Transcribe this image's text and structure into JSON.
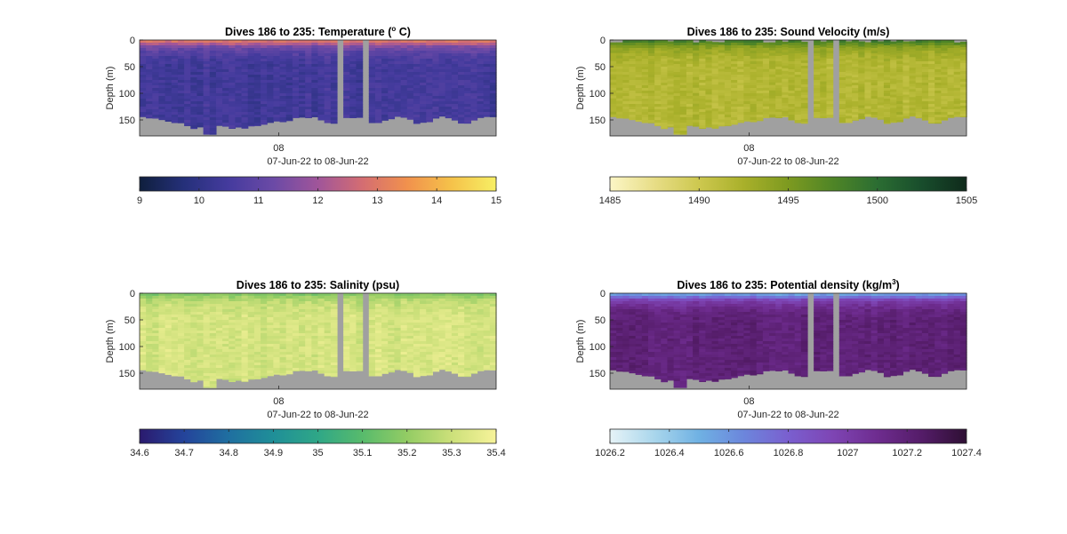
{
  "chart_data": [
    {
      "type": "heatmap",
      "title_main": "Dives 186 to 235: Temperature (",
      "title_sup": "o",
      "title_tail": " C)",
      "ylabel": "Depth (m)",
      "xlabel": "07-Jun-22 to 08-Jun-22",
      "x_tick": "08",
      "y_ticks": [
        "0",
        "50",
        "100",
        "150"
      ],
      "ylim": [
        0,
        180
      ],
      "y_reversed": true,
      "colorbar": {
        "min": 9,
        "max": 15,
        "ticks": [
          "9",
          "10",
          "11",
          "12",
          "13",
          "14",
          "15"
        ]
      },
      "profile": {
        "surface": 12.6,
        "thermocline_depth": 45,
        "deep": 10.3
      },
      "colors": [
        "#0f1f3d",
        "#25307a",
        "#453b9e",
        "#6b4aa6",
        "#a0559a",
        "#d46d72",
        "#f1914d",
        "#f5c24a",
        "#f7ef64"
      ]
    },
    {
      "type": "heatmap",
      "title_main": "Dives 186 to 235: Sound Velocity (m/s)",
      "title_sup": "",
      "title_tail": "",
      "ylabel": "Depth (m)",
      "xlabel": "07-Jun-22 to 08-Jun-22",
      "x_tick": "08",
      "y_ticks": [
        "0",
        "50",
        "100",
        "150"
      ],
      "ylim": [
        0,
        180
      ],
      "y_reversed": true,
      "colorbar": {
        "min": 1485,
        "max": 1505,
        "ticks": [
          "1485",
          "1490",
          "1495",
          "1500",
          "1505"
        ]
      },
      "profile": {
        "surface": 1497.5,
        "thermocline_depth": 45,
        "deep": 1491.5
      },
      "colors": [
        "#fcf6c6",
        "#e7dd86",
        "#cdc84f",
        "#a9b02a",
        "#7d9a20",
        "#4f8526",
        "#2b6d32",
        "#184d2c",
        "#0f2a1b"
      ]
    },
    {
      "type": "heatmap",
      "title_main": "Dives 186 to 235: Salinity (psu)",
      "title_sup": "",
      "title_tail": "",
      "ylabel": "Depth (m)",
      "xlabel": "07-Jun-22 to 08-Jun-22",
      "x_tick": "08",
      "y_ticks": [
        "0",
        "50",
        "100",
        "150"
      ],
      "ylim": [
        0,
        180
      ],
      "y_reversed": true,
      "colorbar": {
        "min": 34.6,
        "max": 35.4,
        "ticks": [
          "34.6",
          "34.7",
          "34.8",
          "34.9",
          "35",
          "35.1",
          "35.2",
          "35.3",
          "35.4"
        ]
      },
      "profile": {
        "surface": 35.2,
        "thermocline_depth": 45,
        "deep": 35.33
      },
      "colors": [
        "#2b1a6e",
        "#24449b",
        "#1f6fa0",
        "#1f8f98",
        "#2fa787",
        "#58bb6c",
        "#93cc64",
        "#cce07a",
        "#f7f39a"
      ]
    },
    {
      "type": "heatmap",
      "title_main": "Dives 186 to 235: Potential density (kg/m",
      "title_sup": "3",
      "title_tail": ")",
      "ylabel": "Depth (m)",
      "xlabel": "07-Jun-22 to 08-Jun-22",
      "x_tick": "08",
      "y_ticks": [
        "0",
        "50",
        "100",
        "150"
      ],
      "ylim": [
        0,
        180
      ],
      "y_reversed": true,
      "colorbar": {
        "min": 1026.2,
        "max": 1027.4,
        "ticks": [
          "1026.2",
          "1026.4",
          "1026.6",
          "1026.8",
          "1027",
          "1027.2",
          "1027.4"
        ]
      },
      "profile": {
        "surface": 1026.65,
        "thermocline_depth": 45,
        "deep": 1027.22
      },
      "colors": [
        "#e6f3f7",
        "#a9d6ec",
        "#6fb1e3",
        "#6c86dc",
        "#7a5fcf",
        "#7e45b4",
        "#6e2c8f",
        "#541c68",
        "#2e0f33"
      ]
    }
  ],
  "no_data_color": "#a0a0a0"
}
